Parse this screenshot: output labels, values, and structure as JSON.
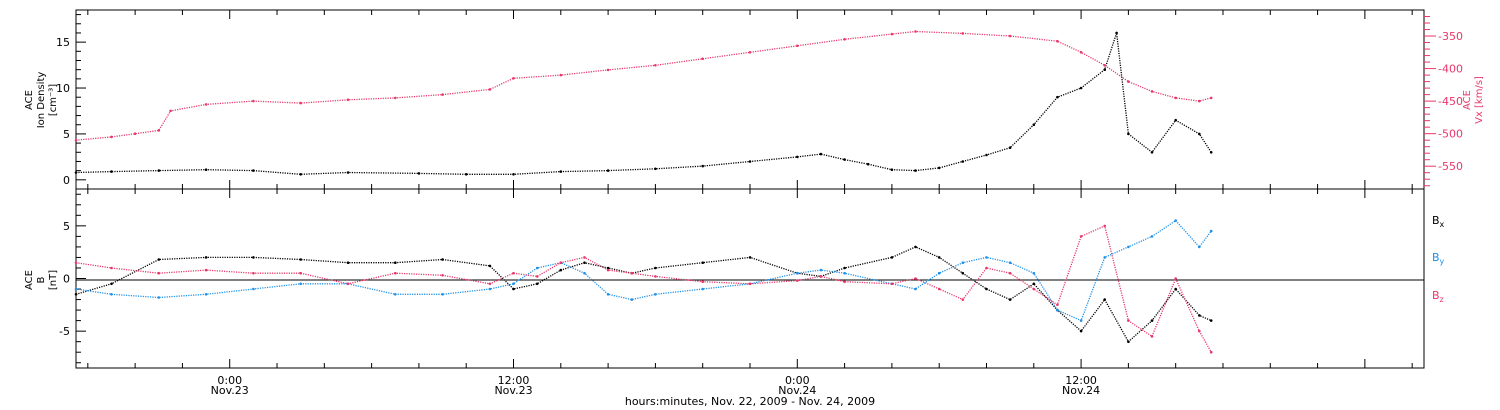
{
  "colors": {
    "black": "#000000",
    "pink": "#e8386b",
    "blue": "#1e90e8"
  },
  "x_axis": {
    "label": "hours:minutes, Nov. 22, 2009 - Nov. 24, 2009",
    "ticks": [
      {
        "hour": 0,
        "time": "0:00",
        "date": "Nov.23"
      },
      {
        "hour": 12,
        "time": "12:00",
        "date": "Nov.23"
      },
      {
        "hour": 24,
        "time": "0:00",
        "date": "Nov.24"
      },
      {
        "hour": 36,
        "time": "12:00",
        "date": "Nov.24"
      }
    ]
  },
  "chart_data": [
    {
      "type": "scatter",
      "panel": "top",
      "ylabel_left": [
        "ACE",
        "Ion Density",
        "[cm⁻³]"
      ],
      "ylabel_right": [
        "ACE",
        "Vx [km/s]"
      ],
      "y_left_ticks": [
        0,
        5,
        10,
        15
      ],
      "y_left_range": [
        -1,
        18.5
      ],
      "y_right_ticks": [
        -350,
        -400,
        -450,
        -500,
        -550
      ],
      "y_right_range": [
        -585,
        -310
      ],
      "x_range_hours": [
        -6.5,
        50.5
      ],
      "series": [
        {
          "name": "Ion Density",
          "axis": "left",
          "color": "#000000",
          "points": [
            [
              -6.5,
              0.8
            ],
            [
              -5,
              0.9
            ],
            [
              -3,
              1.0
            ],
            [
              -1,
              1.1
            ],
            [
              1,
              1.0
            ],
            [
              3,
              0.6
            ],
            [
              5,
              0.8
            ],
            [
              8,
              0.7
            ],
            [
              10,
              0.6
            ],
            [
              12,
              0.6
            ],
            [
              14,
              0.9
            ],
            [
              16,
              1.0
            ],
            [
              18,
              1.2
            ],
            [
              20,
              1.5
            ],
            [
              22,
              2.0
            ],
            [
              24,
              2.5
            ],
            [
              25,
              2.8
            ],
            [
              26,
              2.2
            ],
            [
              27,
              1.7
            ],
            [
              28,
              1.1
            ],
            [
              29,
              1.0
            ],
            [
              30,
              1.3
            ],
            [
              31,
              2.0
            ],
            [
              32,
              2.7
            ],
            [
              33,
              3.5
            ],
            [
              34,
              6.0
            ],
            [
              35,
              9.0
            ],
            [
              36,
              10.0
            ],
            [
              37,
              12.0
            ],
            [
              37.5,
              16.0
            ],
            [
              38,
              5.0
            ],
            [
              39,
              3.0
            ],
            [
              40,
              6.5
            ],
            [
              41,
              5.0
            ],
            [
              41.5,
              3.0
            ]
          ]
        },
        {
          "name": "Vx",
          "axis": "right",
          "color": "#e8386b",
          "points": [
            [
              -6.5,
              -510
            ],
            [
              -5,
              -505
            ],
            [
              -4,
              -500
            ],
            [
              -3,
              -495
            ],
            [
              -2.5,
              -465
            ],
            [
              -1,
              -455
            ],
            [
              1,
              -450
            ],
            [
              3,
              -453
            ],
            [
              5,
              -448
            ],
            [
              7,
              -445
            ],
            [
              9,
              -440
            ],
            [
              11,
              -432
            ],
            [
              12,
              -415
            ],
            [
              14,
              -410
            ],
            [
              16,
              -402
            ],
            [
              18,
              -395
            ],
            [
              20,
              -385
            ],
            [
              22,
              -375
            ],
            [
              24,
              -365
            ],
            [
              26,
              -355
            ],
            [
              28,
              -347
            ],
            [
              29,
              -343
            ],
            [
              31,
              -346
            ],
            [
              33,
              -350
            ],
            [
              35,
              -358
            ],
            [
              36,
              -375
            ],
            [
              37,
              -395
            ],
            [
              38,
              -420
            ],
            [
              39,
              -435
            ],
            [
              40,
              -445
            ],
            [
              41,
              -450
            ],
            [
              41.5,
              -445
            ]
          ]
        }
      ]
    },
    {
      "type": "scatter",
      "panel": "bottom",
      "ylabel_left": [
        "ACE",
        "B",
        "[nT]"
      ],
      "y_left_ticks": [
        -5,
        0,
        5
      ],
      "y_left_range": [
        -8.5,
        8.5
      ],
      "x_range_hours": [
        -6.5,
        50.5
      ],
      "series": [
        {
          "name": "Bx",
          "label": "B",
          "sub": "x",
          "color": "#000000",
          "points": [
            [
              -6.5,
              -1.5
            ],
            [
              -5,
              -0.5
            ],
            [
              -3,
              1.8
            ],
            [
              -1,
              2.0
            ],
            [
              1,
              2.0
            ],
            [
              3,
              1.8
            ],
            [
              5,
              1.5
            ],
            [
              7,
              1.5
            ],
            [
              9,
              1.8
            ],
            [
              11,
              1.2
            ],
            [
              12,
              -1.0
            ],
            [
              13,
              -0.5
            ],
            [
              14,
              0.8
            ],
            [
              15,
              1.5
            ],
            [
              16,
              1.0
            ],
            [
              17,
              0.5
            ],
            [
              18,
              1.0
            ],
            [
              20,
              1.5
            ],
            [
              22,
              2.0
            ],
            [
              24,
              0.5
            ],
            [
              25,
              0.2
            ],
            [
              26,
              1.0
            ],
            [
              28,
              2.0
            ],
            [
              29,
              3.0
            ],
            [
              30,
              2.0
            ],
            [
              31,
              0.5
            ],
            [
              32,
              -1.0
            ],
            [
              33,
              -2.0
            ],
            [
              34,
              -0.5
            ],
            [
              35,
              -3.0
            ],
            [
              36,
              -5.0
            ],
            [
              37,
              -2.0
            ],
            [
              38,
              -6.0
            ],
            [
              39,
              -4.0
            ],
            [
              40,
              -1.0
            ],
            [
              41,
              -3.5
            ],
            [
              41.5,
              -4.0
            ]
          ]
        },
        {
          "name": "By",
          "label": "B",
          "sub": "y",
          "color": "#1e90e8",
          "points": [
            [
              -6.5,
              -1.0
            ],
            [
              -5,
              -1.5
            ],
            [
              -3,
              -1.8
            ],
            [
              -1,
              -1.5
            ],
            [
              1,
              -1.0
            ],
            [
              3,
              -0.5
            ],
            [
              5,
              -0.5
            ],
            [
              7,
              -1.5
            ],
            [
              9,
              -1.5
            ],
            [
              11,
              -1.0
            ],
            [
              12,
              -0.5
            ],
            [
              13,
              1.0
            ],
            [
              14,
              1.5
            ],
            [
              15,
              0.5
            ],
            [
              16,
              -1.5
            ],
            [
              17,
              -2.0
            ],
            [
              18,
              -1.5
            ],
            [
              20,
              -1.0
            ],
            [
              22,
              -0.5
            ],
            [
              24,
              0.5
            ],
            [
              25,
              0.8
            ],
            [
              26,
              0.5
            ],
            [
              28,
              -0.5
            ],
            [
              29,
              -1.0
            ],
            [
              30,
              0.5
            ],
            [
              31,
              1.5
            ],
            [
              32,
              2.0
            ],
            [
              33,
              1.5
            ],
            [
              34,
              0.5
            ],
            [
              35,
              -3.0
            ],
            [
              36,
              -4.0
            ],
            [
              37,
              2.0
            ],
            [
              38,
              3.0
            ],
            [
              39,
              4.0
            ],
            [
              40,
              5.5
            ],
            [
              41,
              3.0
            ],
            [
              41.5,
              4.5
            ]
          ]
        },
        {
          "name": "Bz",
          "label": "B",
          "sub": "z",
          "color": "#e8386b",
          "points": [
            [
              -6.5,
              1.5
            ],
            [
              -5,
              1.0
            ],
            [
              -3,
              0.5
            ],
            [
              -1,
              0.8
            ],
            [
              1,
              0.5
            ],
            [
              3,
              0.5
            ],
            [
              5,
              -0.5
            ],
            [
              7,
              0.5
            ],
            [
              9,
              0.3
            ],
            [
              11,
              -0.5
            ],
            [
              12,
              0.5
            ],
            [
              13,
              0.2
            ],
            [
              14,
              1.5
            ],
            [
              15,
              2.0
            ],
            [
              16,
              0.8
            ],
            [
              17,
              0.5
            ],
            [
              18,
              0.2
            ],
            [
              20,
              -0.3
            ],
            [
              22,
              -0.5
            ],
            [
              24,
              -0.2
            ],
            [
              25,
              0.2
            ],
            [
              26,
              -0.3
            ],
            [
              28,
              -0.5
            ],
            [
              29,
              0.0
            ],
            [
              30,
              -1.0
            ],
            [
              31,
              -2.0
            ],
            [
              32,
              1.0
            ],
            [
              33,
              0.5
            ],
            [
              34,
              -1.0
            ],
            [
              35,
              -2.5
            ],
            [
              36,
              4.0
            ],
            [
              37,
              5.0
            ],
            [
              38,
              -4.0
            ],
            [
              39,
              -5.5
            ],
            [
              40,
              0.0
            ],
            [
              41,
              -5.0
            ],
            [
              41.5,
              -7.0
            ]
          ]
        }
      ]
    }
  ]
}
